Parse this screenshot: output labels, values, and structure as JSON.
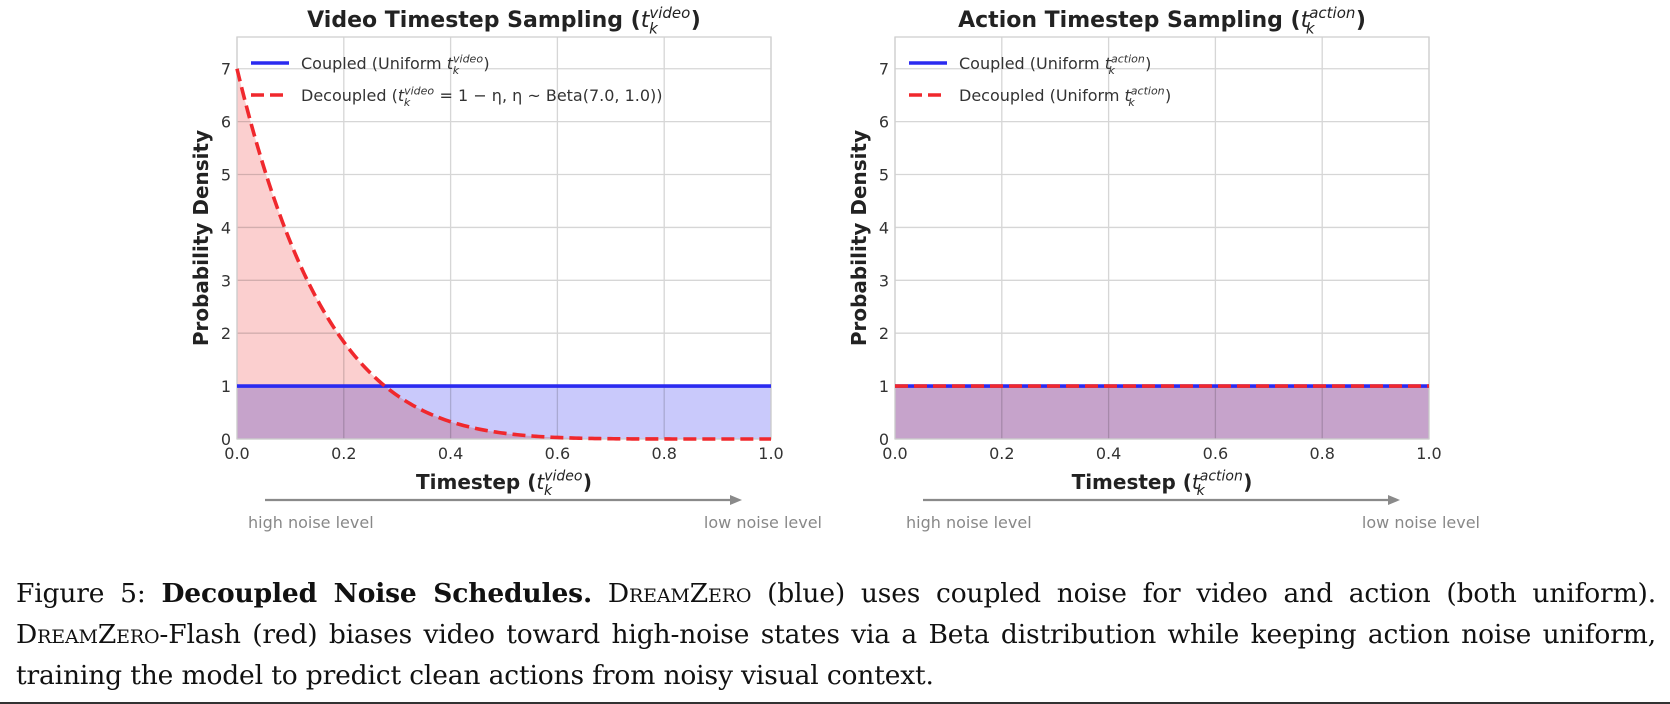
{
  "chart_data": [
    {
      "type": "line",
      "title": {
        "main": "Video Timestep Sampling (",
        "math": "t",
        "sub": "k",
        "sup": "video",
        "close": ")"
      },
      "xlabel": {
        "main": "Timestep (",
        "math": "t",
        "sub": "k",
        "sup": "video",
        "close": ")"
      },
      "ylabel": "Probability Density",
      "xlim": [
        0.0,
        1.0
      ],
      "ylim": [
        0,
        7.6
      ],
      "xticks": [
        "0.0",
        "0.2",
        "0.4",
        "0.6",
        "0.8",
        "1.0"
      ],
      "yticks": [
        "0",
        "1",
        "2",
        "3",
        "4",
        "5",
        "6",
        "7"
      ],
      "grid": true,
      "legend_position": "top-left",
      "series": [
        {
          "name": "Coupled (Uniform t_k^video)",
          "style": "solid",
          "color": "#2b2bf0",
          "fill": "#c9c9fb",
          "function": "uniform",
          "x": [
            0.0,
            1.0
          ],
          "y": [
            1,
            1
          ]
        },
        {
          "name": "Decoupled (t_k^video = 1 − η, η ~ Beta(7.0, 1.0))",
          "style": "dashed",
          "color": "#f0282d",
          "fill": "#f8a8a8",
          "function": "beta-7-1-reflected",
          "x": [
            0.0,
            0.1,
            0.2,
            0.28,
            0.3,
            0.4,
            0.5,
            0.6,
            0.7,
            0.8,
            0.9,
            1.0
          ],
          "y": [
            7.0,
            3.72,
            1.84,
            1.0,
            0.82,
            0.33,
            0.11,
            0.03,
            0.005,
            0.0,
            0.0,
            0.0
          ]
        }
      ],
      "legend": [
        {
          "pre": "Coupled (Uniform ",
          "math": "t",
          "sub": "k",
          "sup": "video",
          "post": ")"
        },
        {
          "pre": "Decoupled (",
          "math": "t",
          "sub": "k",
          "sup": "video",
          "post": " = 1 − η,  η ~ Beta(7.0, 1.0))"
        }
      ],
      "arrow_labels": {
        "left": "high noise level",
        "right": "low noise level"
      }
    },
    {
      "type": "line",
      "title": {
        "main": "Action Timestep Sampling (",
        "math": "t",
        "sub": "k",
        "sup": "action",
        "close": ")"
      },
      "xlabel": {
        "main": "Timestep (",
        "math": "t",
        "sub": "k",
        "sup": "action",
        "close": ")"
      },
      "ylabel": "Probability Density",
      "xlim": [
        0.0,
        1.0
      ],
      "ylim": [
        0,
        7.6
      ],
      "xticks": [
        "0.0",
        "0.2",
        "0.4",
        "0.6",
        "0.8",
        "1.0"
      ],
      "yticks": [
        "0",
        "1",
        "2",
        "3",
        "4",
        "5",
        "6",
        "7"
      ],
      "grid": true,
      "legend_position": "top-left",
      "series": [
        {
          "name": "Coupled (Uniform t_k^action)",
          "style": "solid",
          "color": "#2b2bf0",
          "fill": "#c9c9fb",
          "function": "uniform",
          "x": [
            0.0,
            1.0
          ],
          "y": [
            1,
            1
          ]
        },
        {
          "name": "Decoupled (Uniform t_k^action)",
          "style": "dashed",
          "color": "#f0282d",
          "fill": "#f8a8a8",
          "function": "uniform",
          "x": [
            0.0,
            1.0
          ],
          "y": [
            1,
            1
          ]
        }
      ],
      "legend": [
        {
          "pre": "Coupled (Uniform ",
          "math": "t",
          "sub": "k",
          "sup": "action",
          "post": ")"
        },
        {
          "pre": "Decoupled (Uniform ",
          "math": "t",
          "sub": "k",
          "sup": "action",
          "post": ")"
        }
      ],
      "arrow_labels": {
        "left": "high noise level",
        "right": "low noise level"
      }
    }
  ],
  "caption": {
    "fig_label": "Figure 5: ",
    "bold": "Decoupled Noise Schedules.",
    "sc1": "DreamZero",
    "text1": " (blue) uses coupled noise for video and action (both uniform). ",
    "sc2": "DreamZero",
    "text2": "-Flash (red) biases video toward high-noise states via a Beta distribution while keeping action noise uniform, training the model to predict clean actions from noisy visual context."
  }
}
